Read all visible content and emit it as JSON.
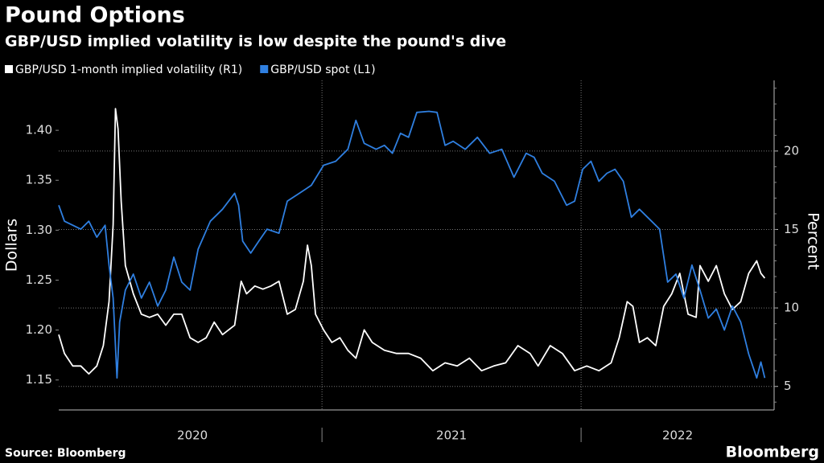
{
  "chart_data": {
    "type": "line",
    "title": "Pound Options",
    "subtitle": "GBP/USD implied volatility is low despite the pound's dive",
    "ylabel": "Dollars",
    "y2label": "Percent",
    "source": "Source: Bloomberg",
    "brand": "Bloomberg",
    "xlim": [
      2019.984,
      2022.745
    ],
    "xticks": [
      2020,
      2021,
      2022
    ],
    "ylim": [
      1.12,
      1.45
    ],
    "yticks": [
      1.15,
      {
        "value": 1.2,
        "label": "1.20"
      },
      1.25,
      {
        "value": 1.3,
        "label": "1.30"
      },
      1.35,
      {
        "value": 1.4,
        "label": "1.40"
      }
    ],
    "y2lim": [
      3.5,
      24.5
    ],
    "y2ticks": [
      5,
      10,
      15,
      20
    ],
    "grid": true,
    "series": [
      {
        "name": "GBP/USD 1-month implied volatility (R1)",
        "color": "#ffffff",
        "axis": "y2",
        "x": [
          2019.984,
          2020.006,
          2020.038,
          2020.069,
          2020.1,
          2020.131,
          2020.156,
          2020.178,
          2020.194,
          2020.203,
          2020.213,
          2020.225,
          2020.241,
          2020.272,
          2020.303,
          2020.334,
          2020.366,
          2020.397,
          2020.428,
          2020.459,
          2020.491,
          2020.522,
          2020.553,
          2020.584,
          2020.616,
          2020.663,
          2020.688,
          2020.709,
          2020.741,
          2020.772,
          2020.803,
          2020.834,
          2020.866,
          2020.897,
          2020.928,
          2020.944,
          2020.959,
          2020.975,
          2021.006,
          2021.038,
          2021.069,
          2021.1,
          2021.131,
          2021.163,
          2021.194,
          2021.241,
          2021.288,
          2021.334,
          2021.381,
          2021.428,
          2021.475,
          2021.522,
          2021.569,
          2021.616,
          2021.663,
          2021.709,
          2021.756,
          2021.803,
          2021.834,
          2021.881,
          2021.928,
          2021.975,
          2022.022,
          2022.069,
          2022.116,
          2022.147,
          2022.178,
          2022.2,
          2022.225,
          2022.256,
          2022.288,
          2022.319,
          2022.35,
          2022.381,
          2022.413,
          2022.444,
          2022.459,
          2022.491,
          2022.522,
          2022.553,
          2022.584,
          2022.616,
          2022.647,
          2022.678,
          2022.694,
          2022.709
        ],
        "values": [
          8.3,
          7.1,
          6.3,
          6.3,
          5.8,
          6.3,
          7.6,
          10.4,
          15.3,
          22.7,
          21.4,
          16.8,
          12.7,
          10.9,
          9.6,
          9.4,
          9.6,
          8.9,
          9.6,
          9.6,
          8.1,
          7.8,
          8.1,
          9.1,
          8.3,
          8.9,
          11.7,
          10.9,
          11.4,
          11.2,
          11.4,
          11.7,
          9.6,
          9.9,
          11.7,
          14.0,
          12.7,
          9.6,
          8.6,
          7.8,
          8.1,
          7.3,
          6.8,
          8.6,
          7.8,
          7.3,
          7.1,
          7.1,
          6.8,
          6.0,
          6.5,
          6.3,
          6.8,
          6.0,
          6.3,
          6.5,
          7.6,
          7.1,
          6.3,
          7.6,
          7.1,
          6.0,
          6.3,
          6.0,
          6.5,
          8.1,
          10.4,
          10.1,
          7.8,
          8.1,
          7.6,
          10.1,
          10.9,
          12.2,
          9.6,
          9.4,
          12.7,
          11.7,
          12.7,
          10.9,
          9.9,
          10.4,
          12.2,
          13.0,
          12.2,
          11.9
        ]
      },
      {
        "name": "GBP/USD spot (L1)",
        "color": "#2f7fe0",
        "x": [
          2019.984,
          2020.006,
          2020.038,
          2020.069,
          2020.1,
          2020.131,
          2020.163,
          2020.178,
          2020.194,
          2020.209,
          2020.219,
          2020.241,
          2020.272,
          2020.303,
          2020.334,
          2020.366,
          2020.397,
          2020.428,
          2020.459,
          2020.491,
          2020.522,
          2020.569,
          2020.616,
          2020.663,
          2020.678,
          2020.694,
          2020.725,
          2020.756,
          2020.788,
          2020.834,
          2020.866,
          2020.913,
          2020.959,
          2021.006,
          2021.053,
          2021.1,
          2021.131,
          2021.163,
          2021.209,
          2021.241,
          2021.272,
          2021.303,
          2021.334,
          2021.366,
          2021.413,
          2021.444,
          2021.475,
          2021.506,
          2021.553,
          2021.6,
          2021.647,
          2021.694,
          2021.741,
          2021.788,
          2021.819,
          2021.85,
          2021.897,
          2021.944,
          2021.975,
          2022.006,
          2022.038,
          2022.069,
          2022.1,
          2022.131,
          2022.163,
          2022.194,
          2022.225,
          2022.272,
          2022.303,
          2022.334,
          2022.366,
          2022.397,
          2022.428,
          2022.459,
          2022.491,
          2022.522,
          2022.553,
          2022.584,
          2022.616,
          2022.647,
          2022.678,
          2022.694,
          2022.709
        ],
        "values": [
          1.325,
          1.309,
          1.305,
          1.301,
          1.309,
          1.293,
          1.305,
          1.265,
          1.232,
          1.152,
          1.208,
          1.24,
          1.256,
          1.232,
          1.248,
          1.224,
          1.24,
          1.273,
          1.248,
          1.24,
          1.281,
          1.309,
          1.321,
          1.337,
          1.325,
          1.289,
          1.277,
          1.289,
          1.301,
          1.297,
          1.329,
          1.337,
          1.345,
          1.365,
          1.369,
          1.381,
          1.41,
          1.387,
          1.381,
          1.385,
          1.377,
          1.397,
          1.393,
          1.418,
          1.419,
          1.418,
          1.385,
          1.389,
          1.381,
          1.393,
          1.377,
          1.381,
          1.353,
          1.377,
          1.373,
          1.357,
          1.349,
          1.325,
          1.329,
          1.361,
          1.369,
          1.349,
          1.357,
          1.361,
          1.349,
          1.313,
          1.321,
          1.309,
          1.301,
          1.248,
          1.256,
          1.232,
          1.265,
          1.24,
          1.212,
          1.221,
          1.2,
          1.224,
          1.208,
          1.176,
          1.152,
          1.168,
          1.152
        ]
      }
    ]
  }
}
